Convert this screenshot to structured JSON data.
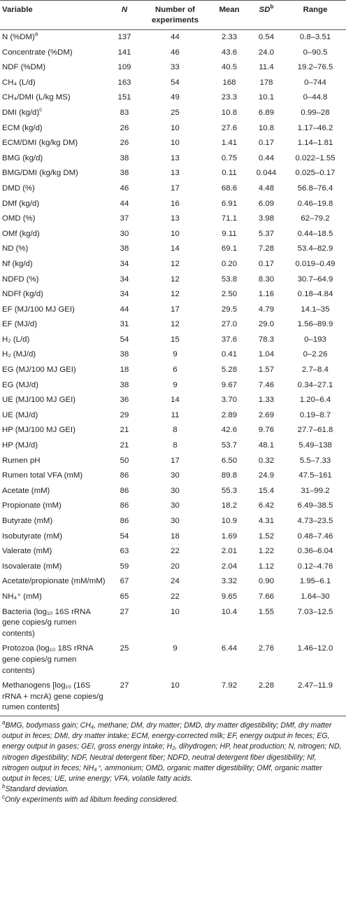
{
  "header": {
    "variable": "Variable",
    "n": "N",
    "experiments": "Number of experiments",
    "mean": "Mean",
    "sd": "SD",
    "sd_note": "b",
    "range": "Range"
  },
  "table": {
    "rows": [
      {
        "variable": "N (%DM)",
        "note": "a",
        "n": 137,
        "experiments": 44,
        "mean": "2.33",
        "sd": "0.54",
        "range": "0.8–3.51"
      },
      {
        "variable": "Concentrate (%DM)",
        "n": 141,
        "experiments": 46,
        "mean": "43.6",
        "sd": "24.0",
        "range": "0–90.5"
      },
      {
        "variable": "NDF (%DM)",
        "n": 109,
        "experiments": 33,
        "mean": "40.5",
        "sd": "11.4",
        "range": "19.2–76.5"
      },
      {
        "variable": "CH₄ (L/d)",
        "n": 163,
        "experiments": 54,
        "mean": "168",
        "sd": "178",
        "range": "0–744"
      },
      {
        "variable": "CH₄/DMI (L/kg MS)",
        "n": 151,
        "experiments": 49,
        "mean": "23.3",
        "sd": "10.1",
        "range": "0–44.8"
      },
      {
        "variable": "DMI (kg/d)",
        "note": "c",
        "n": 83,
        "experiments": 25,
        "mean": "10.8",
        "sd": "6.89",
        "range": "0.99–28"
      },
      {
        "variable": "ECM (kg/d)",
        "n": 26,
        "experiments": 10,
        "mean": "27.6",
        "sd": "10.8",
        "range": "1.17–46.2"
      },
      {
        "variable": "ECM/DMI (kg/kg DM)",
        "n": 26,
        "experiments": 10,
        "mean": "1.41",
        "sd": "0.17",
        "range": "1.14–1.81"
      },
      {
        "variable": "BMG (kg/d)",
        "n": 38,
        "experiments": 13,
        "mean": "0.75",
        "sd": "0.44",
        "range": "0.022–1.55"
      },
      {
        "variable": "BMG/DMI (kg/kg DM)",
        "n": 38,
        "experiments": 13,
        "mean": "0.11",
        "sd": "0.044",
        "range": "0.025–0.17"
      },
      {
        "variable": "DMD (%)",
        "n": 46,
        "experiments": 17,
        "mean": "68.6",
        "sd": "4.48",
        "range": "56.8–76.4"
      },
      {
        "variable": "DMf (kg/d)",
        "n": 44,
        "experiments": 16,
        "mean": "6.91",
        "sd": "6.09",
        "range": "0.46–19.8"
      },
      {
        "variable": "OMD (%)",
        "n": 37,
        "experiments": 13,
        "mean": "71.1",
        "sd": "3.98",
        "range": "62–79.2"
      },
      {
        "variable": "OMf (kg/d)",
        "n": 30,
        "experiments": 10,
        "mean": "9.11",
        "sd": "5.37",
        "range": "0.44–18.5"
      },
      {
        "variable": "ND (%)",
        "n": 38,
        "experiments": 14,
        "mean": "69.1",
        "sd": "7.28",
        "range": "53.4–82.9"
      },
      {
        "variable": "Nf (kg/d)",
        "n": 34,
        "experiments": 12,
        "mean": "0.20",
        "sd": "0.17",
        "range": "0.019–0.49"
      },
      {
        "variable": "NDFD (%)",
        "n": 34,
        "experiments": 12,
        "mean": "53.8",
        "sd": "8.30",
        "range": "30.7–64.9"
      },
      {
        "variable": "NDFf (kg/d)",
        "n": 34,
        "experiments": 12,
        "mean": "2.50",
        "sd": "1.16",
        "range": "0.18–4.84"
      },
      {
        "variable": "EF (MJ/100 MJ GEI)",
        "n": 44,
        "experiments": 17,
        "mean": "29.5",
        "sd": "4.79",
        "range": "14.1–35"
      },
      {
        "variable": "EF (MJ/d)",
        "n": 31,
        "experiments": 12,
        "mean": "27.0",
        "sd": "29.0",
        "range": "1.56–89.9"
      },
      {
        "variable": "H₂ (L/d)",
        "n": 54,
        "experiments": 15,
        "mean": "37.6",
        "sd": "78.3",
        "range": "0–193"
      },
      {
        "variable": "H₂ (MJ/d)",
        "n": 38,
        "experiments": 9,
        "mean": "0.41",
        "sd": "1.04",
        "range": "0–2.26"
      },
      {
        "variable": "EG (MJ/100 MJ GEI)",
        "n": 18,
        "experiments": 6,
        "mean": "5.28",
        "sd": "1.57",
        "range": "2.7–8.4"
      },
      {
        "variable": "EG (MJ/d)",
        "n": 38,
        "experiments": 9,
        "mean": "9.67",
        "sd": "7.46",
        "range": "0.34–27.1"
      },
      {
        "variable": "UE (MJ/100 MJ GEI)",
        "n": 36,
        "experiments": 14,
        "mean": "3.70",
        "sd": "1.33",
        "range": "1.20–6.4"
      },
      {
        "variable": "UE (MJ/d)",
        "n": 29,
        "experiments": 11,
        "mean": "2.89",
        "sd": "2.69",
        "range": "0.19–8.7"
      },
      {
        "variable": "HP (MJ/100 MJ GEI)",
        "n": 21,
        "experiments": 8,
        "mean": "42.6",
        "sd": "9.76",
        "range": "27.7–61.8"
      },
      {
        "variable": "HP (MJ/d)",
        "n": 21,
        "experiments": 8,
        "mean": "53.7",
        "sd": "48.1",
        "range": "5.49–138"
      },
      {
        "variable": "Rumen pH",
        "n": 50,
        "experiments": 17,
        "mean": "6.50",
        "sd": "0.32",
        "range": "5.5–7.33"
      },
      {
        "variable": "Rumen total VFA (mM)",
        "n": 86,
        "experiments": 30,
        "mean": "89.8",
        "sd": "24.9",
        "range": "47.5–161"
      },
      {
        "variable": "Acetate (mM)",
        "n": 86,
        "experiments": 30,
        "mean": "55.3",
        "sd": "15.4",
        "range": "31–99.2"
      },
      {
        "variable": "Propionate (mM)",
        "n": 86,
        "experiments": 30,
        "mean": "18.2",
        "sd": "6.42",
        "range": "6.49–38.5"
      },
      {
        "variable": "Butyrate (mM)",
        "n": 86,
        "experiments": 30,
        "mean": "10.9",
        "sd": "4.31",
        "range": "4.73–23.5"
      },
      {
        "variable": "Isobutyrate (mM)",
        "n": 54,
        "experiments": 18,
        "mean": "1.69",
        "sd": "1.52",
        "range": "0.48–7.46"
      },
      {
        "variable": "Valerate (mM)",
        "n": 63,
        "experiments": 22,
        "mean": "2.01",
        "sd": "1.22",
        "range": "0.36–6.04"
      },
      {
        "variable": "Isovalerate (mM)",
        "n": 59,
        "experiments": 20,
        "mean": "2.04",
        "sd": "1.12",
        "range": "0.12–4.76"
      },
      {
        "variable": "Acetate/propionate (mM/mM)",
        "n": 67,
        "experiments": 24,
        "mean": "3.32",
        "sd": "0.90",
        "range": "1.95–6.1"
      },
      {
        "variable": "NH₄⁺ (mM)",
        "n": 65,
        "experiments": 22,
        "mean": "9.65",
        "sd": "7.66",
        "range": "1.64–30"
      },
      {
        "variable": "Bacteria (log₁₀ 16S rRNA gene copies/g rumen contents)",
        "n": 27,
        "experiments": 10,
        "mean": "10.4",
        "sd": "1.55",
        "range": "7.03–12.5"
      },
      {
        "variable": "Protozoa (log₁₀ 18S rRNA gene copies/g rumen contents)",
        "n": 25,
        "experiments": 9,
        "mean": "6.44",
        "sd": "2.76",
        "range": "1.46–12.0"
      },
      {
        "variable": "Methanogens [log₁₀ (16S rRNA + mcrA) gene copies/g rumen contents]",
        "n": 27,
        "experiments": 10,
        "mean": "7.92",
        "sd": "2.28",
        "range": "2.47–11.9"
      }
    ]
  },
  "footnotes": [
    {
      "mark": "a",
      "text": "BMG, bodymass gain; CH₄, methane; DM, dry matter; DMD, dry matter digestibility; DMf, dry matter output in feces; DMI, dry matter intake; ECM, energy-corrected milk; EF, energy output in feces; EG, energy output in gases; GEI, gross energy intake; H₂, dihydrogen; HP, heat production; N, nitrogen; ND, nitrogen digestibility; NDF, Neutral detergent fiber; NDFD, neutral detergent fiber digestibility; Nf, nitrogen output in feces; NH₄⁺, ammonium; OMD, organic matter digestibility; OMf, organic matter output in feces; UE, urine energy; VFA, volatile fatty acids."
    },
    {
      "mark": "b",
      "text": "Standard deviation."
    },
    {
      "mark": "c",
      "text": "Only experiments with ad libitum feeding considered."
    }
  ]
}
